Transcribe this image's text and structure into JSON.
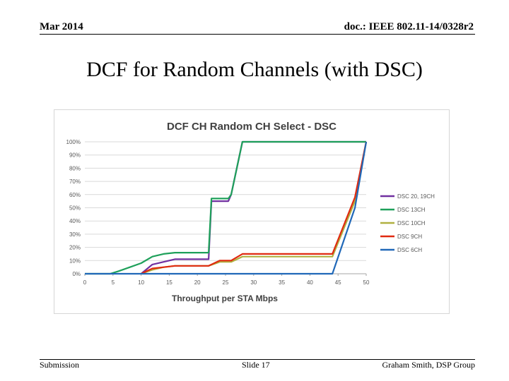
{
  "header": {
    "date": "Mar 2014",
    "doc_id": "doc.: IEEE 802.11-14/0328r2"
  },
  "slide": {
    "title": "DCF for Random Channels (with DSC)"
  },
  "footer": {
    "left": "Submission",
    "center": "Slide 17",
    "right": "Graham Smith, DSP Group"
  },
  "chart_data": {
    "type": "line",
    "title": "DCF CH Random CH Select - DSC",
    "xlabel": "Throughput per STA Mbps",
    "ylabel": "",
    "xlim": [
      0,
      50
    ],
    "ylim": [
      0,
      100
    ],
    "x_ticks": [
      "0",
      "5",
      "10",
      "15",
      "20",
      "25",
      "30",
      "35",
      "40",
      "45",
      "50"
    ],
    "y_ticks": [
      "0%",
      "10%",
      "20%",
      "30%",
      "40%",
      "50%",
      "60%",
      "70%",
      "80%",
      "90%",
      "100%"
    ],
    "grid": true,
    "legend_position": "right",
    "series": [
      {
        "name": "DSC 20, 19CH",
        "color": "#7030a0",
        "x": [
          10,
          12,
          14,
          16,
          22,
          22.5,
          24,
          25.5,
          26,
          28,
          50
        ],
        "y": [
          0,
          7,
          9,
          11,
          11,
          55,
          55,
          55,
          60,
          100,
          100
        ]
      },
      {
        "name": "DSC 13CH",
        "color": "#1ea05a",
        "x": [
          0,
          4.5,
          6,
          8,
          10,
          12,
          14,
          16,
          22,
          22.5,
          24,
          25.5,
          26,
          28,
          50
        ],
        "y": [
          0,
          0,
          2,
          5,
          8,
          13,
          15,
          16,
          16,
          57,
          57,
          57,
          60,
          100,
          100
        ]
      },
      {
        "name": "DSC 10CH",
        "color": "#b0b040",
        "x": [
          10,
          12,
          14,
          16,
          22,
          24,
          26,
          28,
          44,
          48,
          50
        ],
        "y": [
          0,
          3,
          5,
          6,
          6,
          9,
          9,
          13,
          13,
          55,
          100
        ]
      },
      {
        "name": "DSC 9CH",
        "color": "#e02a10",
        "x": [
          10,
          12,
          14,
          16,
          22,
          24,
          26,
          28,
          44,
          48,
          50
        ],
        "y": [
          0,
          4,
          5,
          6,
          6,
          10,
          10,
          15,
          15,
          58,
          100
        ]
      },
      {
        "name": "DSC 6CH",
        "color": "#2068b8",
        "x": [
          0,
          44,
          48,
          50
        ],
        "y": [
          0,
          0,
          50,
          100
        ]
      }
    ]
  }
}
